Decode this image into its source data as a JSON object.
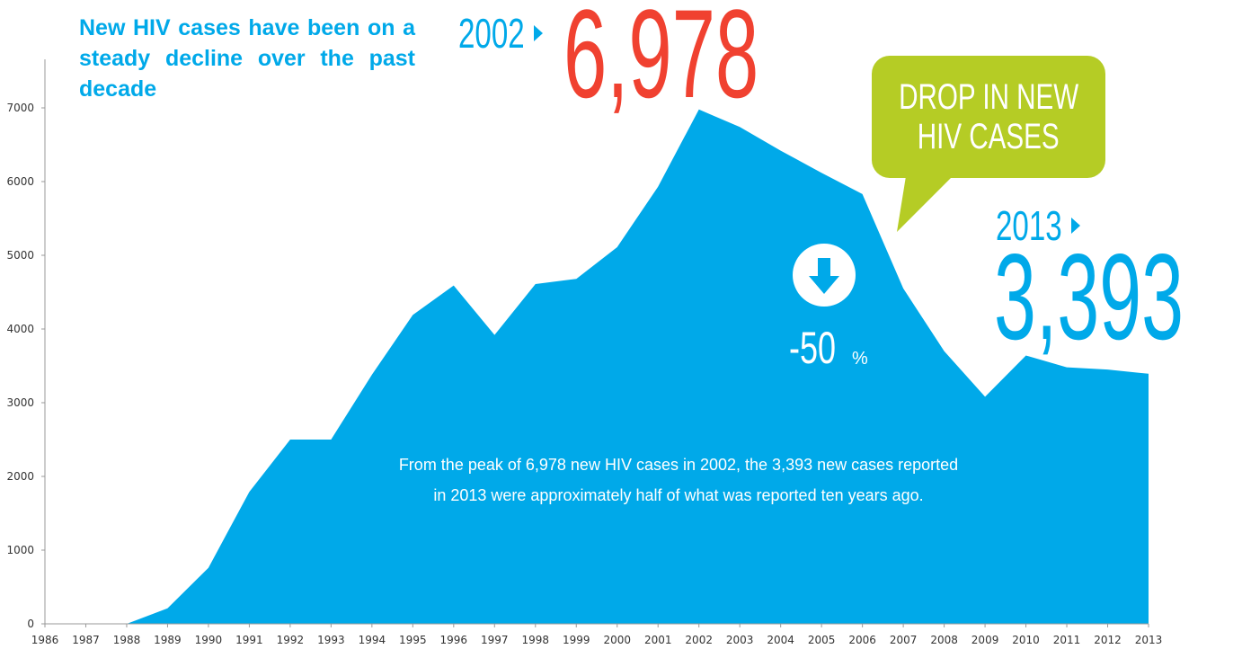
{
  "headline": "New HIV cases have been on a steady decline over the past decade",
  "peak_callout": {
    "year": "2002",
    "value": "6,978"
  },
  "latest_callout": {
    "year": "2013",
    "value": "3,393"
  },
  "bubble_text": [
    "DROP IN NEW",
    "HIV CASES"
  ],
  "drop": {
    "value": "-50",
    "unit": "%"
  },
  "note": "From the peak of 6,978 new HIV cases in 2002, the 3,393 new cases reported in 2013 were approximately half of what was reported ten years ago.",
  "colors": {
    "area": "#00a9e9",
    "peak": "#f04130",
    "bubble": "#b5cc25",
    "text_on_area": "#ffffff"
  },
  "icons": {
    "drop": "arrow-down-circle-icon",
    "pointer": "triangle-right-icon"
  },
  "chart_data": {
    "type": "area",
    "title": "",
    "xlabel": "",
    "ylabel": "",
    "ylim": [
      0,
      7000
    ],
    "yticks": [
      0,
      1000,
      2000,
      3000,
      4000,
      5000,
      6000,
      7000
    ],
    "grid": false,
    "categories": [
      "1986",
      "1987",
      "1988",
      "1989",
      "1990",
      "1991",
      "1992",
      "1993",
      "1994",
      "1995",
      "1996",
      "1997",
      "1998",
      "1999",
      "2000",
      "2001",
      "2002",
      "2003",
      "2004",
      "2005",
      "2006",
      "2007",
      "2008",
      "2009",
      "2010",
      "2011",
      "2012",
      "2013"
    ],
    "series": [
      {
        "values": [
          0,
          0,
          0,
          210,
          760,
          1790,
          2500,
          2500,
          3380,
          4190,
          4590,
          3920,
          4610,
          4680,
          5110,
          5930,
          6978,
          6740,
          6420,
          6120,
          5830,
          4550,
          3700,
          3080,
          3640,
          3480,
          3450,
          3393
        ]
      }
    ]
  }
}
